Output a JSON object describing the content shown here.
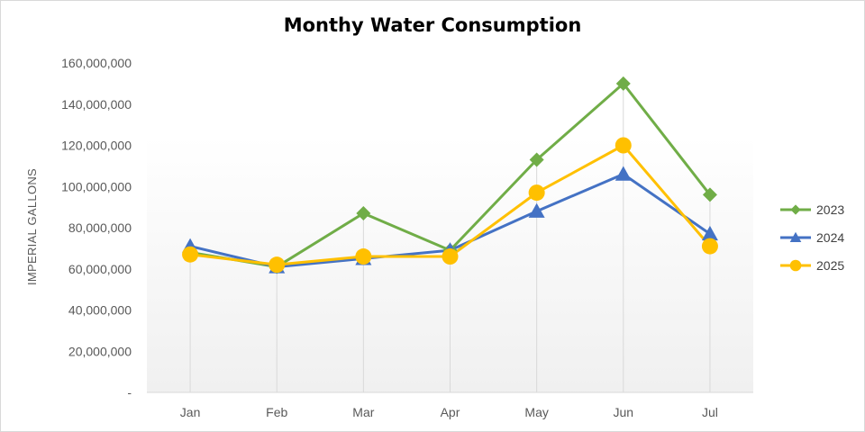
{
  "chart_data": {
    "type": "line",
    "title": "Monthy Water Consumption",
    "xlabel": "",
    "ylabel": "IMPERIAL GALLONS",
    "categories": [
      "Jan",
      "Feb",
      "Mar",
      "Apr",
      "May",
      "Jun",
      "Jul"
    ],
    "ylim": [
      0,
      160000000
    ],
    "yticks": [
      0,
      20000000,
      40000000,
      60000000,
      80000000,
      100000000,
      120000000,
      140000000,
      160000000
    ],
    "ytick_labels": [
      "-",
      "20,000,000",
      "40,000,000",
      "60,000,000",
      "80,000,000",
      "100,000,000",
      "120,000,000",
      "140,000,000",
      "160,000,000"
    ],
    "legend_position": "right",
    "series": [
      {
        "name": "2023",
        "color": "#70ad47",
        "marker": "diamond",
        "values": [
          68000000,
          61000000,
          87000000,
          69000000,
          113000000,
          150000000,
          96000000
        ]
      },
      {
        "name": "2024",
        "color": "#4472c4",
        "marker": "triangle",
        "values": [
          71000000,
          61000000,
          65000000,
          69000000,
          88000000,
          106000000,
          77000000
        ]
      },
      {
        "name": "2025",
        "color": "#ffc000",
        "marker": "circle",
        "values": [
          67000000,
          62000000,
          66000000,
          66000000,
          97000000,
          120000000,
          71000000
        ]
      }
    ]
  }
}
